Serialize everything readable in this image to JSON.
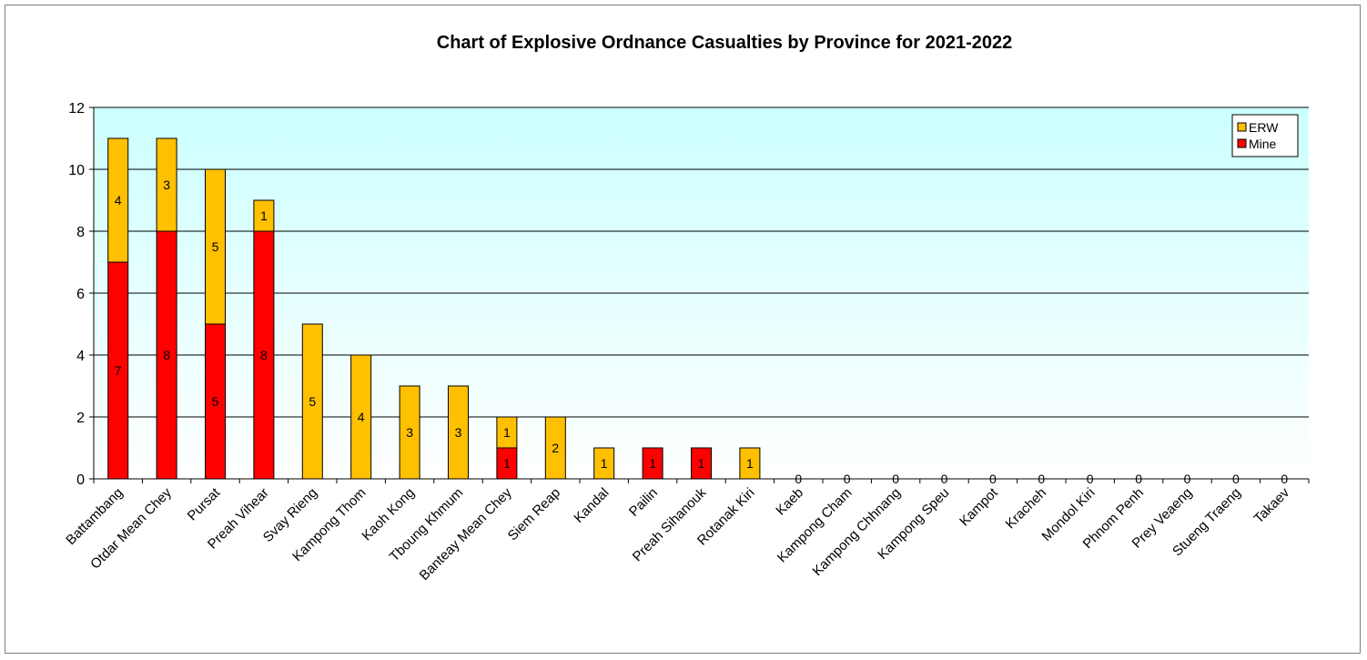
{
  "chart_data": {
    "type": "bar",
    "stacked": true,
    "title": "Chart of Explosive Ordnance Casualties by Province for 2021-2022",
    "xlabel": "",
    "ylabel": "",
    "ylim": [
      0,
      12
    ],
    "yticks": [
      0,
      2,
      4,
      6,
      8,
      10,
      12
    ],
    "grid": true,
    "legend_position": "top-right",
    "categories": [
      "Battambang",
      "Otdar Mean Chey",
      "Pursat",
      "Preah Vihear",
      "Svay Rieng",
      "Kampong Thom",
      "Kaoh Kong",
      "Tboung Khmum",
      "Banteay Mean Chey",
      "Siem Reap",
      "Kandal",
      "Pailin",
      "Preah Sihanouk",
      "Rotanak Kiri",
      "Kaeb",
      "Kampong Cham",
      "Kampong Chhnang",
      "Kampong Speu",
      "Kampot",
      "Kracheh",
      "Mondol Kiri",
      "Phnom Penh",
      "Prey Veaeng",
      "Stueng Traeng",
      "Takaev"
    ],
    "series": [
      {
        "name": "Mine",
        "color": "#ff0000",
        "values": [
          7,
          8,
          5,
          8,
          0,
          0,
          0,
          0,
          1,
          0,
          0,
          1,
          1,
          0,
          0,
          0,
          0,
          0,
          0,
          0,
          0,
          0,
          0,
          0,
          0
        ]
      },
      {
        "name": "ERW",
        "color": "#ffc000",
        "values": [
          4,
          3,
          5,
          1,
          5,
          4,
          3,
          3,
          1,
          2,
          1,
          0,
          0,
          1,
          0,
          0,
          0,
          0,
          0,
          0,
          0,
          0,
          0,
          0,
          0
        ]
      }
    ],
    "plot_background_top": "#ccffff",
    "plot_background_bottom": "#ffffff"
  }
}
